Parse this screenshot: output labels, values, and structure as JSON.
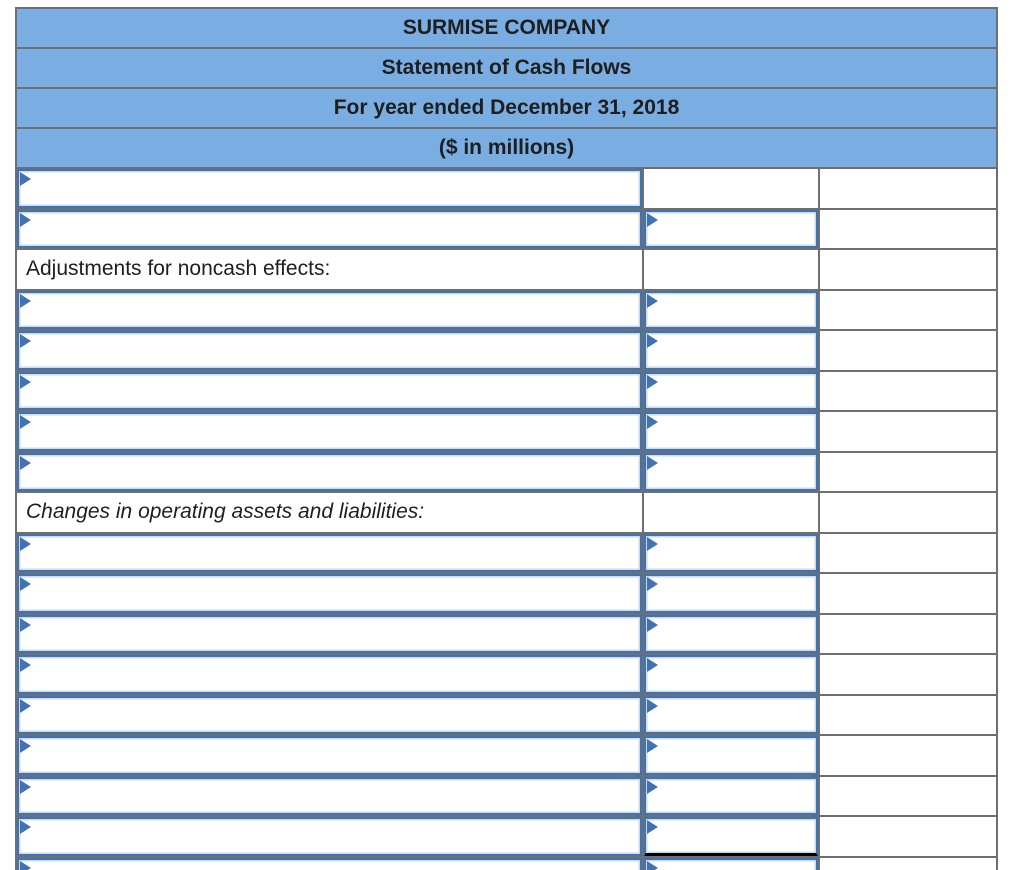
{
  "header": {
    "rows": [
      "SURMISE COMPANY",
      "Statement of Cash Flows",
      "For year ended December 31, 2018",
      "($ in millions)"
    ]
  },
  "rows": [
    {
      "kind": "desc-only"
    },
    {
      "kind": "desc-amount"
    },
    {
      "kind": "label",
      "text": "Adjustments for noncash effects:",
      "style": "normal"
    },
    {
      "kind": "desc-amount"
    },
    {
      "kind": "desc-amount"
    },
    {
      "kind": "desc-amount"
    },
    {
      "kind": "desc-amount"
    },
    {
      "kind": "desc-amount"
    },
    {
      "kind": "label",
      "text": "Changes in operating assets and liabilities:",
      "style": "italic"
    },
    {
      "kind": "desc-amount"
    },
    {
      "kind": "desc-amount"
    },
    {
      "kind": "desc-amount"
    },
    {
      "kind": "desc-amount"
    },
    {
      "kind": "desc-amount"
    },
    {
      "kind": "desc-amount"
    },
    {
      "kind": "desc-amount"
    },
    {
      "kind": "desc-amount",
      "amount_underline": true
    },
    {
      "kind": "desc-amount",
      "clipped": true
    }
  ],
  "icons": {
    "input_marker": "right-pointing-triangle"
  },
  "colors": {
    "header_bg": "#7aade2",
    "grid_line": "#6f6f6f",
    "input_border": "#4173b3",
    "subtotal_underline": "#000000",
    "text": "#1e1e1e"
  }
}
